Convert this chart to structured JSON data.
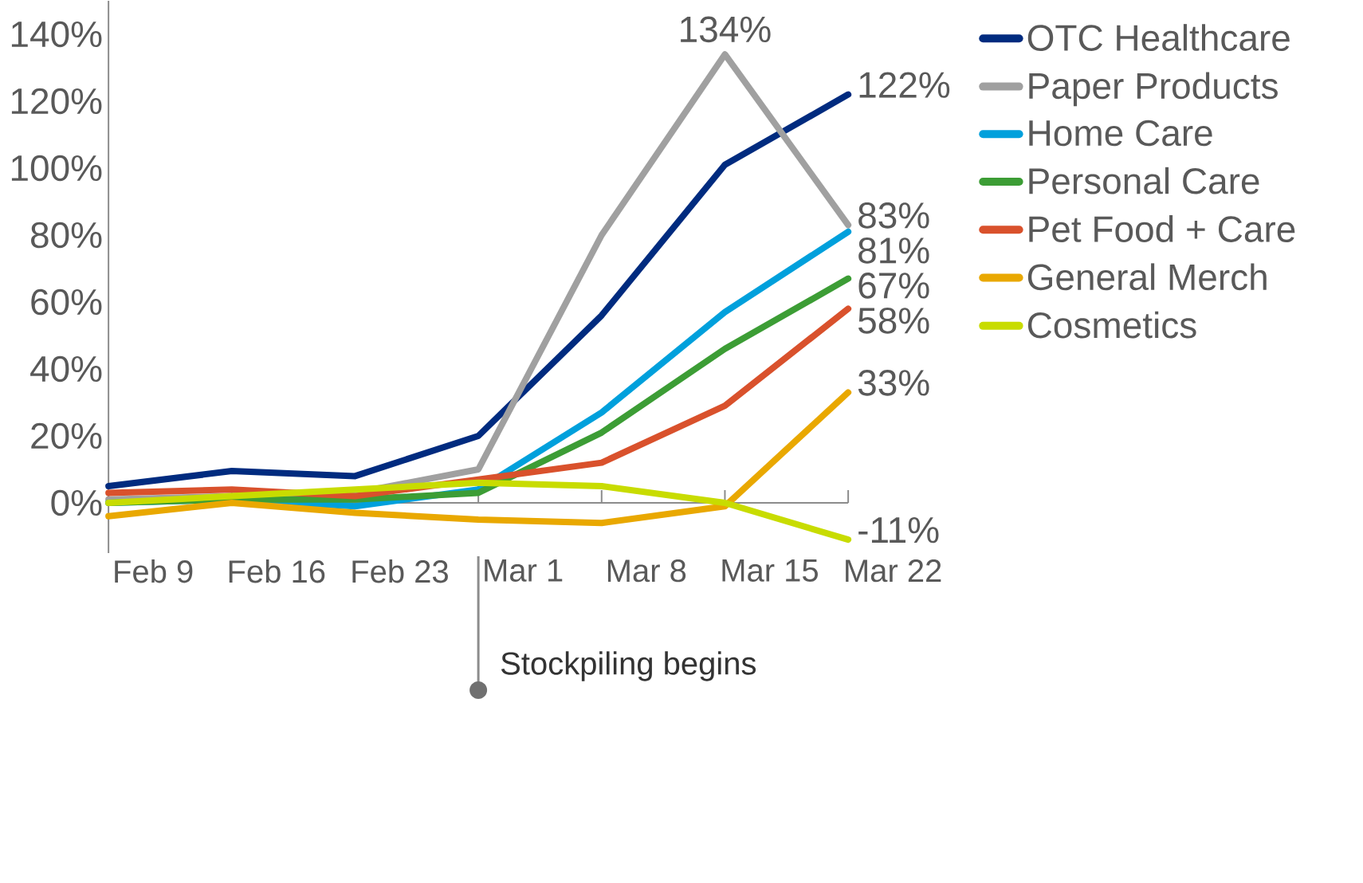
{
  "chart_data": {
    "type": "line",
    "categories": [
      "Feb 9",
      "Feb 16",
      "Feb 23",
      "Mar 1",
      "Mar 8",
      "Mar 15",
      "Mar 22"
    ],
    "series": [
      {
        "name": "OTC Healthcare",
        "color": "#002b7f",
        "values": [
          5,
          9.5,
          8,
          20,
          56,
          101,
          122
        ],
        "value_labels": [
          null,
          null,
          null,
          null,
          null,
          null,
          "122%"
        ]
      },
      {
        "name": "Paper Products",
        "color": "#a0a0a0",
        "values": [
          1,
          2,
          3,
          10,
          80,
          134,
          83
        ],
        "value_labels": [
          null,
          null,
          null,
          null,
          null,
          "134%",
          "83%"
        ]
      },
      {
        "name": "Home Care",
        "color": "#00a0dc",
        "values": [
          0,
          1,
          -1,
          4,
          27,
          57,
          81
        ],
        "value_labels": [
          null,
          null,
          null,
          null,
          null,
          null,
          "81%"
        ]
      },
      {
        "name": "Personal Care",
        "color": "#3c9d35",
        "values": [
          0,
          1,
          1,
          3,
          21,
          46,
          67
        ],
        "value_labels": [
          null,
          null,
          null,
          null,
          null,
          null,
          "67%"
        ]
      },
      {
        "name": "Pet Food + Care",
        "color": "#d9512c",
        "values": [
          3,
          4,
          2,
          7,
          12,
          29,
          58
        ],
        "value_labels": [
          null,
          null,
          null,
          null,
          null,
          null,
          "58%"
        ]
      },
      {
        "name": "General Merch",
        "color": "#e9a800",
        "values": [
          -4,
          0,
          -3,
          -5,
          -6,
          -1,
          33
        ],
        "value_labels": [
          null,
          null,
          null,
          null,
          null,
          null,
          "33%"
        ]
      },
      {
        "name": "Cosmetics",
        "color": "#c8dc00",
        "values": [
          0,
          2,
          4,
          6,
          5,
          0,
          -11
        ],
        "value_labels": [
          null,
          null,
          null,
          null,
          null,
          null,
          "-11%"
        ]
      }
    ],
    "ylim": [
      -15,
      150
    ],
    "yticks": [
      {
        "value": 0,
        "label": "0%"
      },
      {
        "value": 20,
        "label": "20%"
      },
      {
        "value": 40,
        "label": "40%"
      },
      {
        "value": 60,
        "label": "60%"
      },
      {
        "value": 80,
        "label": "80%"
      },
      {
        "value": 100,
        "label": "100%"
      },
      {
        "value": 120,
        "label": "120%"
      },
      {
        "value": 140,
        "label": "140%"
      }
    ],
    "legend": "right",
    "grid": false,
    "marker": "none",
    "line_style": "solid",
    "annotations": [
      "Stockpiling begins"
    ]
  }
}
